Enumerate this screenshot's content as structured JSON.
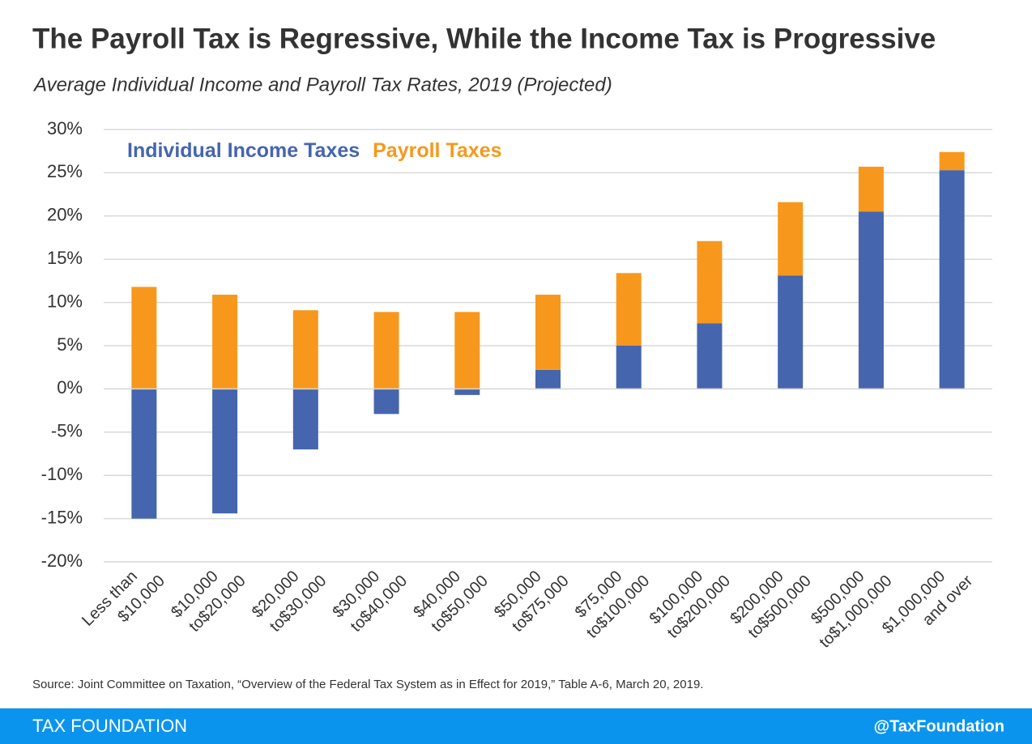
{
  "chart_data": {
    "type": "stacked-bar",
    "title": "The Payroll Tax is Regressive, While the Income Tax is Progressive",
    "subtitle": "Average Individual Income and Payroll Tax Rates, 2019 (Projected)",
    "categories": [
      [
        "Less than",
        "$10,000"
      ],
      [
        "$10,000",
        "to$20,000"
      ],
      [
        "$20,000",
        "to$30,000"
      ],
      [
        "$30,000",
        "to$40,000"
      ],
      [
        "$40,000",
        "to$50,000"
      ],
      [
        "$50,000",
        "to$75,000"
      ],
      [
        "$75,000",
        "to$100,000"
      ],
      [
        "$100,000",
        "to$200,000"
      ],
      [
        "$200,000",
        "to$500,000"
      ],
      [
        "$500,000",
        "to$1,000,000"
      ],
      [
        "$1,000,000",
        "and over"
      ]
    ],
    "series": [
      {
        "name": "Individual Income Taxes",
        "color": "#4565ae",
        "values": [
          -15.0,
          -14.4,
          -7.0,
          -2.9,
          -0.7,
          2.2,
          5.0,
          7.6,
          13.1,
          20.5,
          25.3
        ]
      },
      {
        "name": "Payroll Taxes",
        "color": "#f7981d",
        "values": [
          11.8,
          10.9,
          9.1,
          8.9,
          8.9,
          8.7,
          8.4,
          9.5,
          8.5,
          5.2,
          2.1
        ]
      }
    ],
    "ylim": [
      -20,
      30
    ],
    "yticks": [
      {
        "value": -20,
        "label": "-20%"
      },
      {
        "value": -15,
        "label": "-15%"
      },
      {
        "value": -10,
        "label": "-10%"
      },
      {
        "value": -5,
        "label": "-5%"
      },
      {
        "value": 0,
        "label": "0%"
      },
      {
        "value": 5,
        "label": "5%"
      },
      {
        "value": 10,
        "label": "10%"
      },
      {
        "value": 15,
        "label": "15%"
      },
      {
        "value": 20,
        "label": "20%"
      },
      {
        "value": 25,
        "label": "25%"
      },
      {
        "value": 30,
        "label": "30%"
      }
    ],
    "grid": true,
    "source": "Source: Joint Committee on Taxation, “Overview of the Federal Tax System as in Effect for 2019,” Table A-6, March 20, 2019.",
    "footer_left": "TAX FOUNDATION",
    "footer_right": "@TaxFoundation"
  }
}
